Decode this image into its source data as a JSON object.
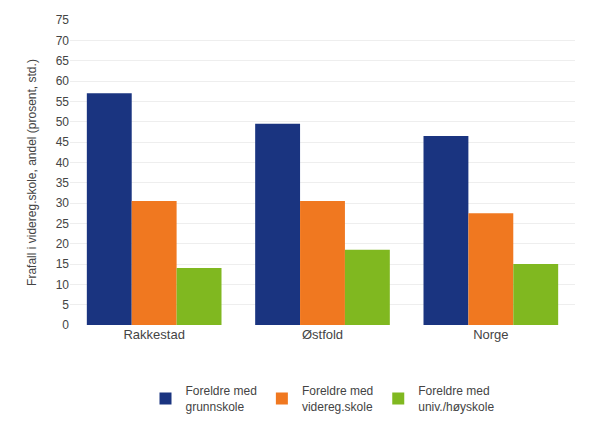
{
  "chart_data": {
    "type": "bar",
    "categories": [
      "Rakkestad",
      "Østfold",
      "Norge"
    ],
    "series": [
      {
        "name": "Foreldre med\ngrunnskole",
        "color": "#1a3480",
        "values": [
          57,
          49.5,
          46.5
        ]
      },
      {
        "name": "Foreldre med\nvidereg.skole",
        "color": "#f07820",
        "values": [
          30.5,
          30.5,
          27.5
        ]
      },
      {
        "name": "Foreldre med\nuniv./høyskole",
        "color": "#80b820",
        "values": [
          14,
          18.5,
          15
        ]
      }
    ],
    "ylabel": "Frafall i videreg.skole, andel (prosent, std.)",
    "ylim": [
      0,
      75
    ],
    "yticks": [
      0,
      5,
      10,
      15,
      20,
      25,
      30,
      35,
      40,
      45,
      50,
      55,
      60,
      65,
      70,
      75
    ],
    "grid": true,
    "legend": "bottom"
  }
}
